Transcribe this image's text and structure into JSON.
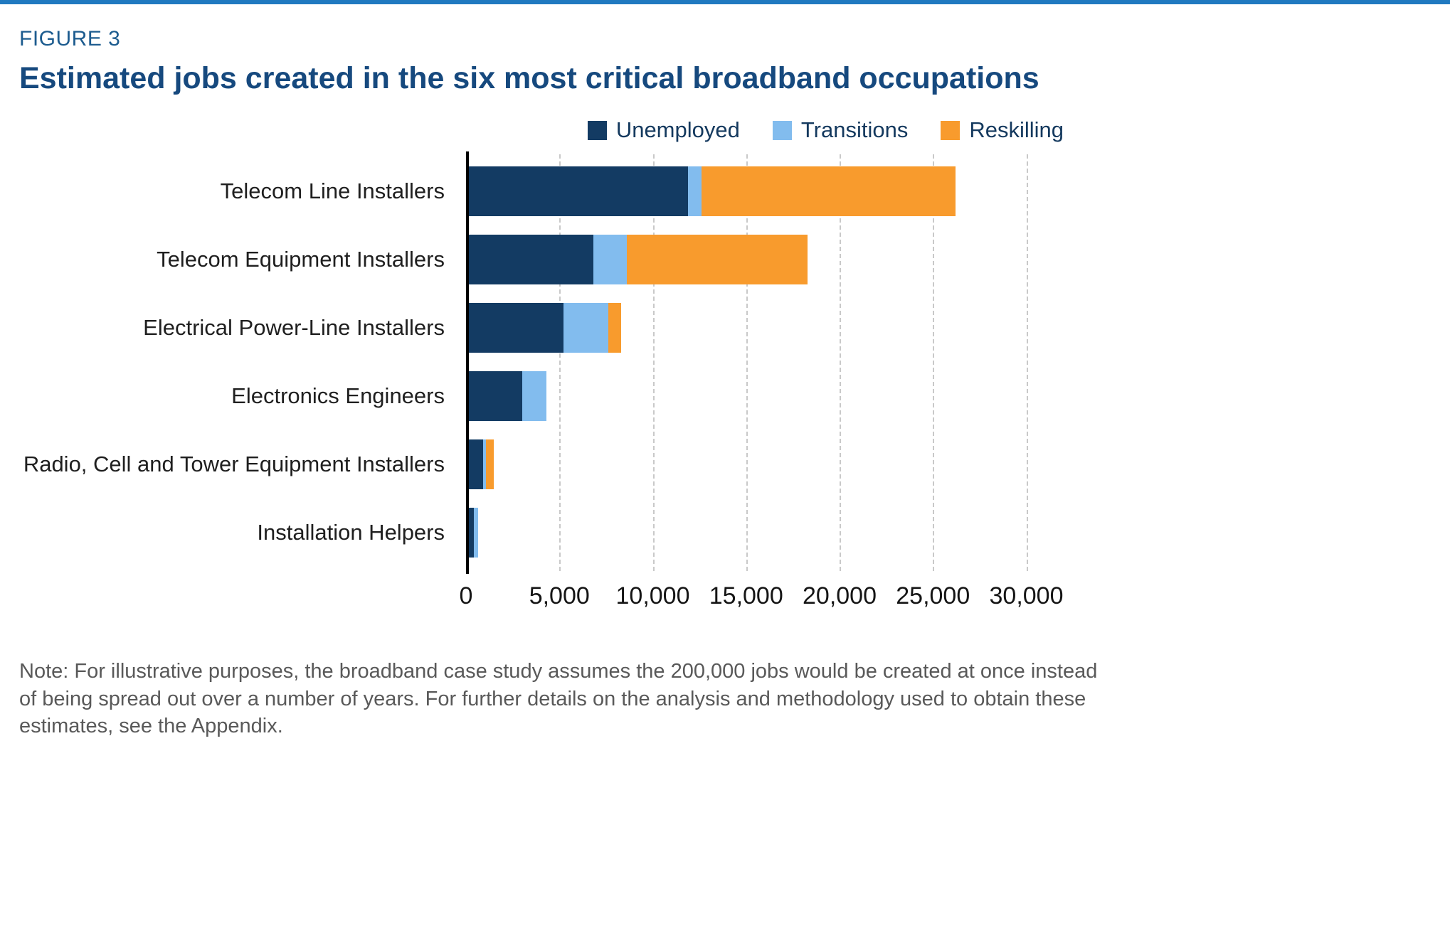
{
  "figure": {
    "label": "FIGURE 3",
    "title": "Estimated jobs created in the six most critical broadband occupations"
  },
  "note": "Note: For illustrative purposes, the broadband case study assumes the 200,000 jobs would be created at once instead of being spread out over a number of years. For further details on the analysis and methodology used to obtain these estimates, see the Appendix.",
  "colors": {
    "navy": "#133b63",
    "light_blue": "#82bcee",
    "orange": "#f89b2d",
    "top_rule": "#2079c0",
    "title_text": "#16497e",
    "figure_label_text": "#1d5c8f",
    "legend_text": "#14395e"
  },
  "chart_data": {
    "type": "bar",
    "orientation": "horizontal",
    "stacked": true,
    "title": "Estimated jobs created in the six most critical broadband occupations",
    "categories": [
      "Telecom Line Installers",
      "Telecom Equipment Installers",
      "Electrical Power-Line Installers",
      "Electronics Engineers",
      "Radio, Cell and Tower Equipment Installers",
      "Installation Helpers"
    ],
    "series": [
      {
        "name": "Unemployed",
        "color_key": "navy",
        "values": [
          11900,
          6800,
          5200,
          3000,
          900,
          400
        ]
      },
      {
        "name": "Transitions",
        "color_key": "light_blue",
        "values": [
          700,
          1800,
          2400,
          1300,
          150,
          250
        ]
      },
      {
        "name": "Reskilling",
        "color_key": "orange",
        "values": [
          13600,
          9700,
          700,
          0,
          450,
          0
        ]
      }
    ],
    "totals": [
      26200,
      18300,
      8300,
      4300,
      1500,
      650
    ],
    "xlim": [
      0,
      32000
    ],
    "xticks": [
      0,
      5000,
      10000,
      15000,
      20000,
      25000,
      30000
    ],
    "xtick_labels": [
      "0",
      "5,000",
      "10,000",
      "15,000",
      "20,000",
      "25,000",
      "30,000"
    ],
    "grid": "dashed-vertical",
    "legend_position": "top-right"
  }
}
